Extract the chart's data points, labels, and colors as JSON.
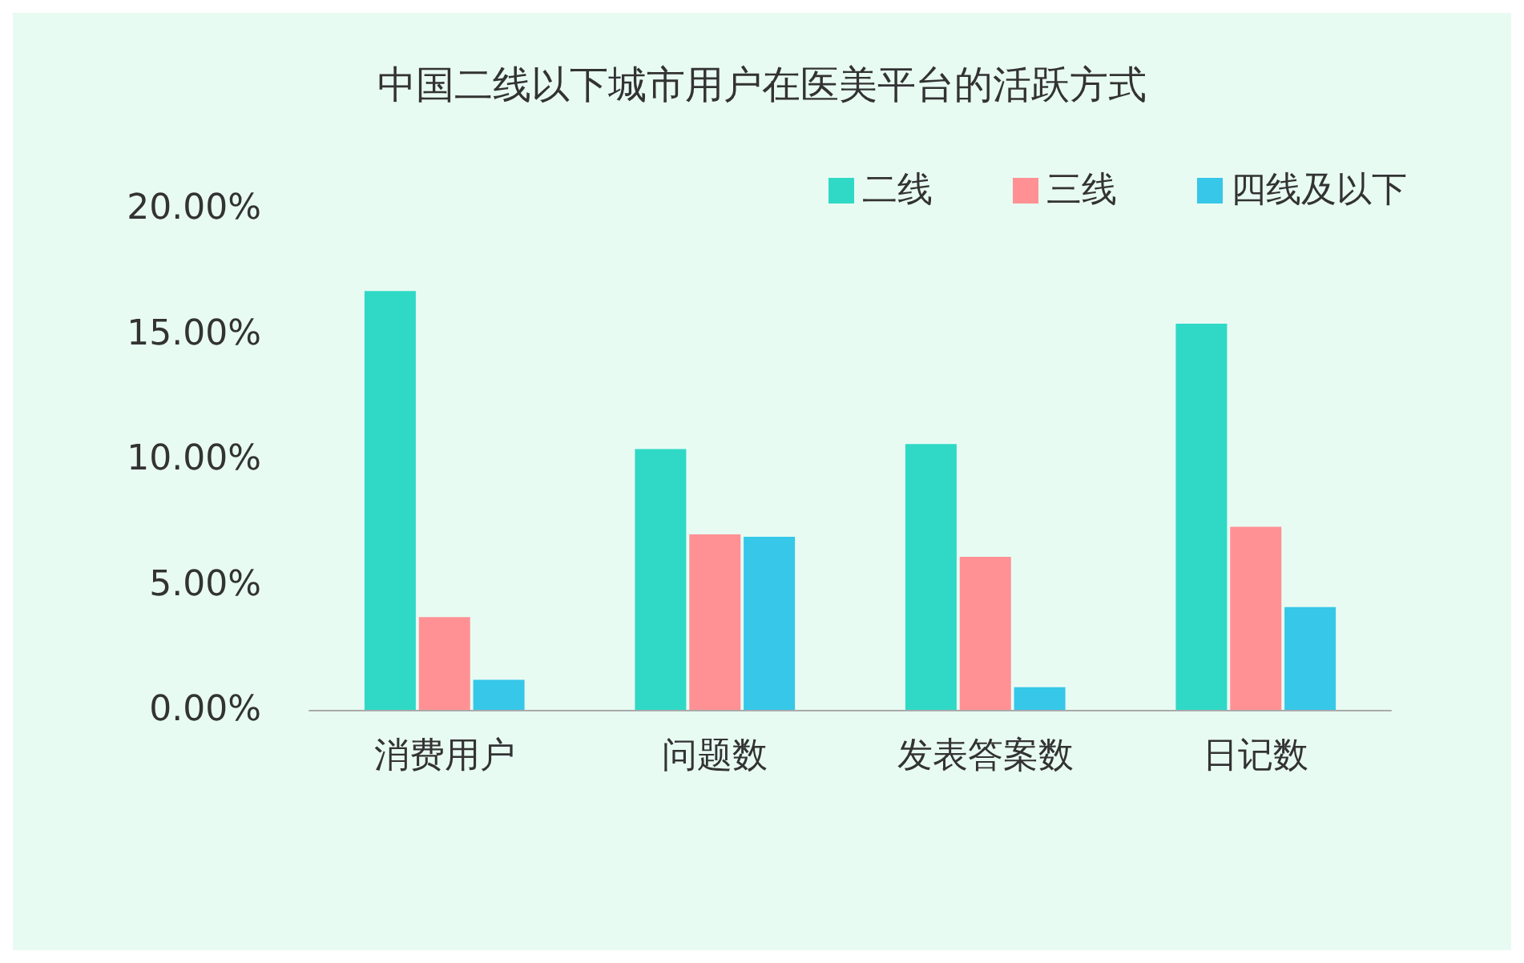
{
  "chart_data": {
    "type": "bar",
    "title": "中国二线以下城市用户在医美平台的活跃方式",
    "categories": [
      "消费用户",
      "问题数",
      "发表答案数",
      "日记数"
    ],
    "series": [
      {
        "name": "二线",
        "color": "#2fd9c6",
        "values": [
          16.7,
          10.4,
          10.6,
          15.4
        ]
      },
      {
        "name": "三线",
        "color": "#ff9194",
        "values": [
          3.7,
          7.0,
          6.1,
          7.3
        ]
      },
      {
        "name": "四线及以下",
        "color": "#36c7e9",
        "values": [
          1.2,
          6.9,
          0.9,
          4.1
        ]
      }
    ],
    "ylim": [
      0,
      20
    ],
    "yticks": [
      {
        "value": 0,
        "label": "0.00%"
      },
      {
        "value": 5,
        "label": "5.00%"
      },
      {
        "value": 10,
        "label": "10.00%"
      },
      {
        "value": 15,
        "label": "15.00%"
      },
      {
        "value": 20,
        "label": "20.00%"
      }
    ],
    "grid": false,
    "legend": "top right"
  }
}
